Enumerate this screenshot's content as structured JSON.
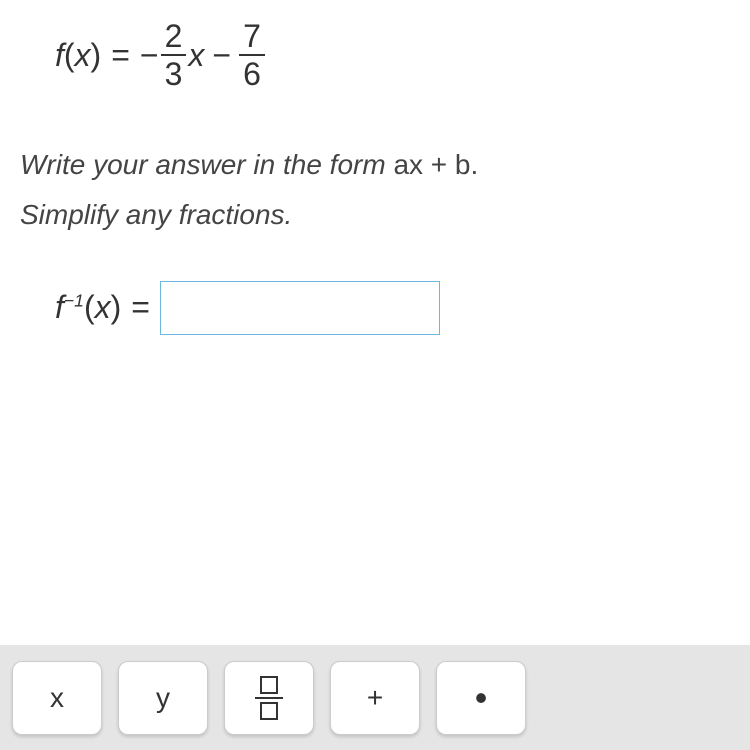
{
  "equation": {
    "func_name": "f",
    "func_arg": "x",
    "open_paren": "(",
    "close_paren": ")",
    "equals": "=",
    "neg_sign": "−",
    "frac1_num": "2",
    "frac1_den": "3",
    "var_after_frac1": "x",
    "minus": "−",
    "frac2_num": "7",
    "frac2_den": "6"
  },
  "instruction": {
    "line1_italic": "Write your answer in the form ",
    "line1_form": "ax + b.",
    "line2": "Simplify any fractions."
  },
  "answer": {
    "func_name": "f",
    "exponent": "−1",
    "open_paren": "(",
    "func_arg": "x",
    "close_paren": ")",
    "equals": "=",
    "value": ""
  },
  "toolbar": {
    "btn_x": "x",
    "btn_y": "y",
    "btn_plus": "+",
    "btn_dot": "•"
  },
  "colors": {
    "text": "#333333",
    "input_border": "#6ab8e0",
    "toolbar_bg": "#e5e5e5",
    "btn_bg": "#ffffff",
    "btn_border": "#cccccc"
  }
}
